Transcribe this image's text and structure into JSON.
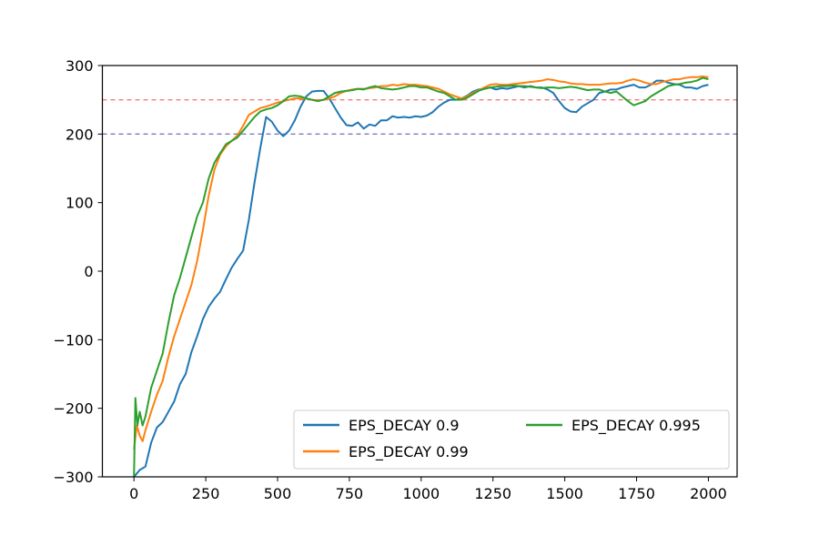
{
  "chart_data": {
    "type": "line",
    "title": "",
    "xlabel": "",
    "ylabel": "",
    "xlim": [
      -110,
      2100
    ],
    "ylim": [
      -300,
      300
    ],
    "xticks": [
      0,
      250,
      500,
      750,
      1000,
      1250,
      1500,
      1750,
      2000
    ],
    "yticks": [
      -300,
      -200,
      -100,
      0,
      100,
      200,
      300
    ],
    "ytick_labels": [
      "−300",
      "−200",
      "−100",
      "0",
      "100",
      "200",
      "300"
    ],
    "grid": false,
    "legend_position": "lower-right",
    "reference_lines": [
      {
        "y": 250,
        "color": "#f08080",
        "style": "dashed"
      },
      {
        "y": 200,
        "color": "#7b7bbf",
        "style": "dashed"
      }
    ],
    "series": [
      {
        "name": "EPS_DECAY 0.9",
        "color": "#1f77b4",
        "points": [
          [
            0,
            -300
          ],
          [
            20,
            -290
          ],
          [
            40,
            -285
          ],
          [
            60,
            -250
          ],
          [
            80,
            -228
          ],
          [
            100,
            -220
          ],
          [
            120,
            -205
          ],
          [
            140,
            -190
          ],
          [
            160,
            -165
          ],
          [
            180,
            -150
          ],
          [
            200,
            -118
          ],
          [
            220,
            -95
          ],
          [
            240,
            -70
          ],
          [
            260,
            -52
          ],
          [
            280,
            -40
          ],
          [
            300,
            -30
          ],
          [
            320,
            -12
          ],
          [
            340,
            5
          ],
          [
            360,
            18
          ],
          [
            380,
            30
          ],
          [
            400,
            75
          ],
          [
            420,
            130
          ],
          [
            440,
            180
          ],
          [
            460,
            225
          ],
          [
            480,
            218
          ],
          [
            500,
            205
          ],
          [
            520,
            197
          ],
          [
            540,
            205
          ],
          [
            560,
            220
          ],
          [
            580,
            240
          ],
          [
            600,
            255
          ],
          [
            620,
            262
          ],
          [
            640,
            263
          ],
          [
            660,
            263
          ],
          [
            680,
            252
          ],
          [
            700,
            238
          ],
          [
            720,
            224
          ],
          [
            740,
            213
          ],
          [
            760,
            212
          ],
          [
            780,
            217
          ],
          [
            800,
            208
          ],
          [
            820,
            214
          ],
          [
            840,
            212
          ],
          [
            860,
            220
          ],
          [
            880,
            220
          ],
          [
            900,
            226
          ],
          [
            920,
            224
          ],
          [
            940,
            225
          ],
          [
            960,
            224
          ],
          [
            980,
            226
          ],
          [
            1000,
            225
          ],
          [
            1020,
            227
          ],
          [
            1040,
            232
          ],
          [
            1060,
            240
          ],
          [
            1080,
            246
          ],
          [
            1100,
            250
          ],
          [
            1120,
            250
          ],
          [
            1140,
            252
          ],
          [
            1160,
            256
          ],
          [
            1180,
            262
          ],
          [
            1200,
            265
          ],
          [
            1220,
            266
          ],
          [
            1240,
            268
          ],
          [
            1260,
            265
          ],
          [
            1280,
            267
          ],
          [
            1300,
            266
          ],
          [
            1320,
            268
          ],
          [
            1340,
            270
          ],
          [
            1360,
            268
          ],
          [
            1380,
            270
          ],
          [
            1400,
            268
          ],
          [
            1420,
            268
          ],
          [
            1440,
            265
          ],
          [
            1460,
            260
          ],
          [
            1480,
            248
          ],
          [
            1500,
            238
          ],
          [
            1520,
            233
          ],
          [
            1540,
            232
          ],
          [
            1560,
            240
          ],
          [
            1580,
            245
          ],
          [
            1600,
            250
          ],
          [
            1620,
            260
          ],
          [
            1640,
            262
          ],
          [
            1660,
            265
          ],
          [
            1680,
            265
          ],
          [
            1700,
            268
          ],
          [
            1720,
            270
          ],
          [
            1740,
            272
          ],
          [
            1760,
            268
          ],
          [
            1780,
            268
          ],
          [
            1800,
            272
          ],
          [
            1820,
            278
          ],
          [
            1840,
            278
          ],
          [
            1860,
            275
          ],
          [
            1880,
            273
          ],
          [
            1900,
            272
          ],
          [
            1920,
            268
          ],
          [
            1940,
            268
          ],
          [
            1960,
            266
          ],
          [
            1980,
            270
          ],
          [
            2000,
            272
          ]
        ]
      },
      {
        "name": "EPS_DECAY 0.99",
        "color": "#ff7f0e",
        "points": [
          [
            0,
            -260
          ],
          [
            10,
            -225
          ],
          [
            20,
            -240
          ],
          [
            30,
            -248
          ],
          [
            40,
            -232
          ],
          [
            60,
            -205
          ],
          [
            80,
            -180
          ],
          [
            100,
            -160
          ],
          [
            120,
            -125
          ],
          [
            140,
            -95
          ],
          [
            160,
            -70
          ],
          [
            180,
            -45
          ],
          [
            200,
            -20
          ],
          [
            220,
            15
          ],
          [
            240,
            60
          ],
          [
            260,
            110
          ],
          [
            280,
            148
          ],
          [
            300,
            170
          ],
          [
            320,
            182
          ],
          [
            340,
            190
          ],
          [
            360,
            198
          ],
          [
            380,
            212
          ],
          [
            400,
            228
          ],
          [
            420,
            233
          ],
          [
            440,
            238
          ],
          [
            460,
            240
          ],
          [
            480,
            243
          ],
          [
            500,
            246
          ],
          [
            520,
            248
          ],
          [
            540,
            250
          ],
          [
            560,
            252
          ],
          [
            580,
            252
          ],
          [
            600,
            252
          ],
          [
            620,
            250
          ],
          [
            640,
            249
          ],
          [
            660,
            250
          ],
          [
            680,
            252
          ],
          [
            700,
            255
          ],
          [
            720,
            260
          ],
          [
            740,
            263
          ],
          [
            760,
            265
          ],
          [
            780,
            266
          ],
          [
            800,
            266
          ],
          [
            820,
            267
          ],
          [
            840,
            268
          ],
          [
            860,
            270
          ],
          [
            880,
            270
          ],
          [
            900,
            272
          ],
          [
            920,
            271
          ],
          [
            940,
            273
          ],
          [
            960,
            272
          ],
          [
            980,
            272
          ],
          [
            1000,
            271
          ],
          [
            1020,
            270
          ],
          [
            1040,
            268
          ],
          [
            1060,
            266
          ],
          [
            1080,
            262
          ],
          [
            1100,
            258
          ],
          [
            1120,
            255
          ],
          [
            1140,
            252
          ],
          [
            1160,
            255
          ],
          [
            1180,
            260
          ],
          [
            1200,
            264
          ],
          [
            1220,
            268
          ],
          [
            1240,
            272
          ],
          [
            1260,
            273
          ],
          [
            1280,
            272
          ],
          [
            1300,
            272
          ],
          [
            1320,
            273
          ],
          [
            1340,
            274
          ],
          [
            1360,
            275
          ],
          [
            1380,
            276
          ],
          [
            1400,
            277
          ],
          [
            1420,
            278
          ],
          [
            1440,
            280
          ],
          [
            1460,
            279
          ],
          [
            1480,
            277
          ],
          [
            1500,
            276
          ],
          [
            1520,
            274
          ],
          [
            1540,
            273
          ],
          [
            1560,
            273
          ],
          [
            1580,
            272
          ],
          [
            1600,
            272
          ],
          [
            1620,
            272
          ],
          [
            1640,
            273
          ],
          [
            1660,
            274
          ],
          [
            1680,
            274
          ],
          [
            1700,
            275
          ],
          [
            1720,
            278
          ],
          [
            1740,
            280
          ],
          [
            1760,
            278
          ],
          [
            1780,
            275
          ],
          [
            1800,
            273
          ],
          [
            1820,
            273
          ],
          [
            1840,
            276
          ],
          [
            1860,
            278
          ],
          [
            1880,
            280
          ],
          [
            1900,
            280
          ],
          [
            1920,
            282
          ],
          [
            1940,
            283
          ],
          [
            1960,
            283
          ],
          [
            1980,
            284
          ],
          [
            2000,
            283
          ]
        ]
      },
      {
        "name": "EPS_DECAY 0.995",
        "color": "#2ca02c",
        "points": [
          [
            0,
            -300
          ],
          [
            5,
            -185
          ],
          [
            12,
            -225
          ],
          [
            20,
            -205
          ],
          [
            30,
            -225
          ],
          [
            40,
            -212
          ],
          [
            60,
            -170
          ],
          [
            80,
            -145
          ],
          [
            100,
            -120
          ],
          [
            120,
            -75
          ],
          [
            140,
            -35
          ],
          [
            160,
            -10
          ],
          [
            180,
            20
          ],
          [
            200,
            50
          ],
          [
            220,
            80
          ],
          [
            240,
            100
          ],
          [
            260,
            135
          ],
          [
            280,
            158
          ],
          [
            300,
            172
          ],
          [
            320,
            185
          ],
          [
            340,
            190
          ],
          [
            360,
            195
          ],
          [
            380,
            205
          ],
          [
            400,
            215
          ],
          [
            420,
            225
          ],
          [
            440,
            233
          ],
          [
            460,
            236
          ],
          [
            480,
            238
          ],
          [
            500,
            242
          ],
          [
            520,
            248
          ],
          [
            540,
            255
          ],
          [
            560,
            256
          ],
          [
            580,
            255
          ],
          [
            600,
            252
          ],
          [
            620,
            250
          ],
          [
            640,
            248
          ],
          [
            660,
            250
          ],
          [
            680,
            255
          ],
          [
            700,
            260
          ],
          [
            720,
            262
          ],
          [
            740,
            263
          ],
          [
            760,
            264
          ],
          [
            780,
            266
          ],
          [
            800,
            265
          ],
          [
            820,
            268
          ],
          [
            840,
            270
          ],
          [
            860,
            267
          ],
          [
            880,
            266
          ],
          [
            900,
            265
          ],
          [
            920,
            266
          ],
          [
            940,
            268
          ],
          [
            960,
            270
          ],
          [
            980,
            270
          ],
          [
            1000,
            268
          ],
          [
            1020,
            268
          ],
          [
            1040,
            265
          ],
          [
            1060,
            262
          ],
          [
            1080,
            260
          ],
          [
            1100,
            255
          ],
          [
            1120,
            250
          ],
          [
            1140,
            250
          ],
          [
            1160,
            253
          ],
          [
            1180,
            258
          ],
          [
            1200,
            263
          ],
          [
            1220,
            266
          ],
          [
            1240,
            268
          ],
          [
            1260,
            269
          ],
          [
            1280,
            270
          ],
          [
            1300,
            270
          ],
          [
            1320,
            271
          ],
          [
            1340,
            270
          ],
          [
            1360,
            270
          ],
          [
            1380,
            269
          ],
          [
            1400,
            268
          ],
          [
            1420,
            267
          ],
          [
            1440,
            268
          ],
          [
            1460,
            268
          ],
          [
            1480,
            267
          ],
          [
            1500,
            268
          ],
          [
            1520,
            269
          ],
          [
            1540,
            268
          ],
          [
            1560,
            266
          ],
          [
            1580,
            264
          ],
          [
            1600,
            265
          ],
          [
            1620,
            265
          ],
          [
            1640,
            262
          ],
          [
            1660,
            260
          ],
          [
            1680,
            262
          ],
          [
            1700,
            255
          ],
          [
            1720,
            248
          ],
          [
            1740,
            242
          ],
          [
            1760,
            245
          ],
          [
            1780,
            248
          ],
          [
            1800,
            255
          ],
          [
            1820,
            260
          ],
          [
            1840,
            265
          ],
          [
            1860,
            270
          ],
          [
            1880,
            272
          ],
          [
            1900,
            273
          ],
          [
            1920,
            275
          ],
          [
            1940,
            276
          ],
          [
            1960,
            278
          ],
          [
            1980,
            282
          ],
          [
            2000,
            280
          ]
        ]
      }
    ]
  }
}
